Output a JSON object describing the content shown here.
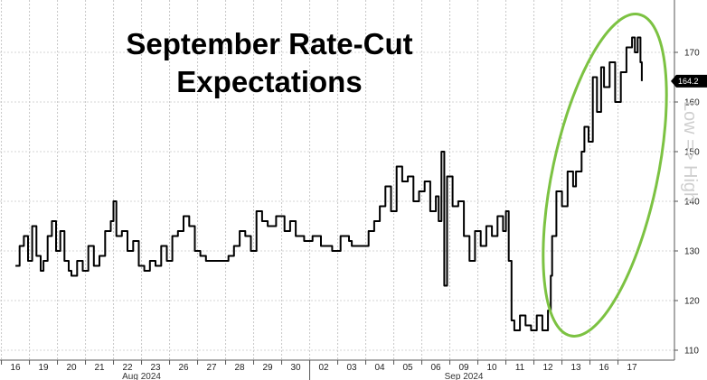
{
  "chart_data": {
    "type": "line",
    "title_lines": [
      "September Rate-Cut",
      "Expectations"
    ],
    "watermark": "Low => High",
    "last_value_label": "164.2",
    "ylim": [
      108,
      178
    ],
    "y_ticks": [
      110,
      120,
      130,
      140,
      150,
      160,
      170
    ],
    "x_days": [
      "16",
      "19",
      "20",
      "21",
      "22",
      "23",
      "26",
      "27",
      "28",
      "29",
      "30",
      "02",
      "03",
      "04",
      "05",
      "06",
      "09",
      "10",
      "11",
      "12",
      "13",
      "16",
      "17"
    ],
    "months": [
      {
        "label": "Aug 2024",
        "day_index": 4.5
      },
      {
        "label": "Sep 2024",
        "day_index": 16
      }
    ],
    "colors": {
      "line": "#000000",
      "highlight": "#7cc242",
      "grid": "#c8c8c8"
    },
    "series": [
      {
        "values": [
          [
            0.0,
            127
          ],
          [
            0.15,
            131
          ],
          [
            0.3,
            133
          ],
          [
            0.45,
            128
          ],
          [
            0.6,
            135
          ],
          [
            0.75,
            129
          ],
          [
            0.9,
            126
          ],
          [
            1.0,
            128
          ],
          [
            1.15,
            133
          ],
          [
            1.3,
            136
          ],
          [
            1.45,
            130
          ],
          [
            1.6,
            134
          ],
          [
            1.75,
            128
          ],
          [
            1.9,
            126
          ],
          [
            2.0,
            125
          ],
          [
            2.2,
            128
          ],
          [
            2.4,
            126
          ],
          [
            2.6,
            131
          ],
          [
            2.8,
            127
          ],
          [
            3.0,
            129
          ],
          [
            3.2,
            134
          ],
          [
            3.4,
            136
          ],
          [
            3.5,
            140
          ],
          [
            3.6,
            133
          ],
          [
            3.8,
            134
          ],
          [
            4.0,
            130
          ],
          [
            4.2,
            132
          ],
          [
            4.4,
            127
          ],
          [
            4.6,
            126
          ],
          [
            4.8,
            128
          ],
          [
            5.0,
            127
          ],
          [
            5.2,
            131
          ],
          [
            5.4,
            128
          ],
          [
            5.6,
            133
          ],
          [
            5.8,
            134
          ],
          [
            6.0,
            137
          ],
          [
            6.2,
            135
          ],
          [
            6.4,
            130
          ],
          [
            6.6,
            129
          ],
          [
            6.8,
            128
          ],
          [
            7.0,
            128
          ],
          [
            7.3,
            128
          ],
          [
            7.6,
            129
          ],
          [
            7.8,
            131
          ],
          [
            8.0,
            134
          ],
          [
            8.2,
            133
          ],
          [
            8.4,
            130
          ],
          [
            8.6,
            138
          ],
          [
            8.8,
            136
          ],
          [
            9.0,
            135
          ],
          [
            9.3,
            137
          ],
          [
            9.6,
            134
          ],
          [
            9.8,
            136
          ],
          [
            10.0,
            133
          ],
          [
            10.3,
            132
          ],
          [
            10.6,
            133
          ],
          [
            10.9,
            131
          ],
          [
            11.0,
            131
          ],
          [
            11.3,
            130
          ],
          [
            11.6,
            133
          ],
          [
            11.9,
            132
          ],
          [
            12.0,
            131
          ],
          [
            12.3,
            131
          ],
          [
            12.6,
            134
          ],
          [
            12.8,
            136
          ],
          [
            13.0,
            139
          ],
          [
            13.2,
            143
          ],
          [
            13.4,
            138
          ],
          [
            13.6,
            147
          ],
          [
            13.8,
            144
          ],
          [
            14.0,
            145
          ],
          [
            14.2,
            140
          ],
          [
            14.4,
            142
          ],
          [
            14.6,
            144
          ],
          [
            14.8,
            138
          ],
          [
            15.0,
            141
          ],
          [
            15.1,
            136
          ],
          [
            15.2,
            150
          ],
          [
            15.3,
            123
          ],
          [
            15.4,
            145
          ],
          [
            15.6,
            139
          ],
          [
            15.8,
            140
          ],
          [
            16.0,
            133
          ],
          [
            16.2,
            128
          ],
          [
            16.4,
            134
          ],
          [
            16.6,
            131
          ],
          [
            16.8,
            135
          ],
          [
            17.0,
            133
          ],
          [
            17.2,
            137
          ],
          [
            17.4,
            134
          ],
          [
            17.5,
            138
          ],
          [
            17.6,
            128
          ],
          [
            17.7,
            116
          ],
          [
            17.8,
            114
          ],
          [
            18.0,
            117
          ],
          [
            18.2,
            115
          ],
          [
            18.4,
            114
          ],
          [
            18.6,
            117
          ],
          [
            18.8,
            114
          ],
          [
            19.0,
            118
          ],
          [
            19.1,
            125
          ],
          [
            19.15,
            133
          ],
          [
            19.3,
            142
          ],
          [
            19.5,
            139
          ],
          [
            19.7,
            146
          ],
          [
            19.9,
            143
          ],
          [
            20.0,
            146
          ],
          [
            20.2,
            150
          ],
          [
            20.3,
            155
          ],
          [
            20.45,
            152
          ],
          [
            20.6,
            165
          ],
          [
            20.75,
            158
          ],
          [
            20.9,
            167
          ],
          [
            21.0,
            163
          ],
          [
            21.2,
            168
          ],
          [
            21.4,
            160
          ],
          [
            21.6,
            166
          ],
          [
            21.8,
            171
          ],
          [
            22.0,
            173
          ],
          [
            22.1,
            170
          ],
          [
            22.2,
            173
          ],
          [
            22.3,
            168
          ],
          [
            22.35,
            164.2
          ]
        ]
      }
    ]
  }
}
